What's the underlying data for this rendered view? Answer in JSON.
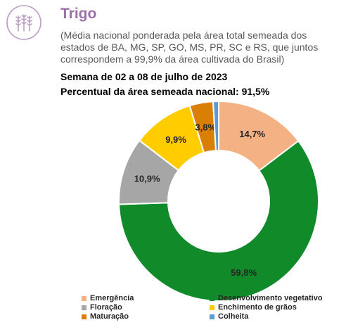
{
  "header": {
    "icon": "wheat-icon",
    "title": "Trigo",
    "subtitle": "(Média nacional ponderada pela área total semeada dos estados de BA, MG, SP, GO, MS, PR, SC e RS, que juntos correspondem a 99,9% da área cultivada do Brasil)",
    "week": "Semana de 02 a 08 de julho de 2023",
    "percent_area": "Percentual da área semeada nacional: 91,5%"
  },
  "chart_data": {
    "type": "pie",
    "variant": "donut",
    "categories": [
      "Emergência",
      "Desenvolvimento vegetativo",
      "Floração",
      "Enchimento de grãos",
      "Maturação",
      "Colheita"
    ],
    "values": [
      14.7,
      59.8,
      10.9,
      9.9,
      3.8,
      0.9
    ],
    "data_labels": [
      "14,7%",
      "59,8%",
      "10,9%",
      "9,9%",
      "3,8%",
      ""
    ],
    "colors": [
      "#f4b183",
      "#118a29",
      "#a6a6a6",
      "#ffcc00",
      "#d98004",
      "#5b9bd5"
    ],
    "legend_position": "bottom"
  }
}
